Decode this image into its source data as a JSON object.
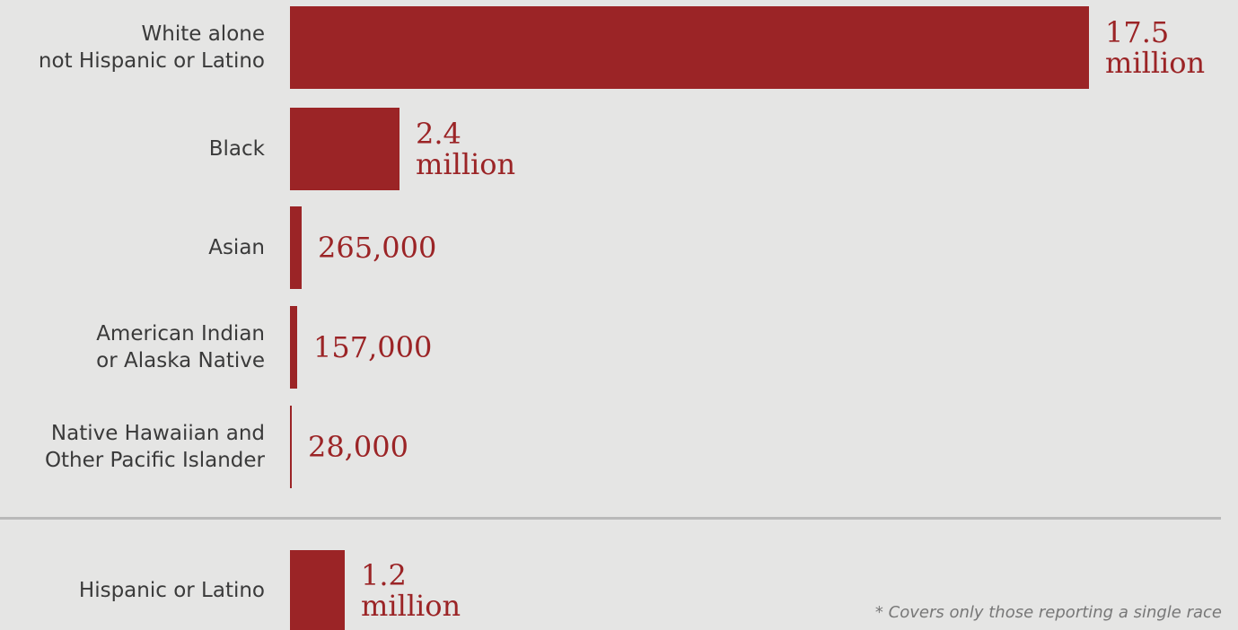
{
  "chart_data": {
    "type": "bar",
    "orientation": "horizontal",
    "categories": [
      "White alone\nnot Hispanic or Latino",
      "Black",
      "Asian",
      "American Indian\nor Alaska Native",
      "Native Hawaiian and\nOther Pacific Islander",
      "Hispanic or Latino"
    ],
    "values": [
      17500000,
      2400000,
      265000,
      157000,
      28000,
      1200000
    ],
    "value_labels": [
      "17.5\nmillion",
      "2.4\nmillion",
      "265,000",
      "157,000",
      "28,000",
      "1.2\nmillion"
    ],
    "bar_color": "#9b2426",
    "background_color": "#e5e5e4",
    "footnote": "* Covers only those reporting a single race"
  }
}
